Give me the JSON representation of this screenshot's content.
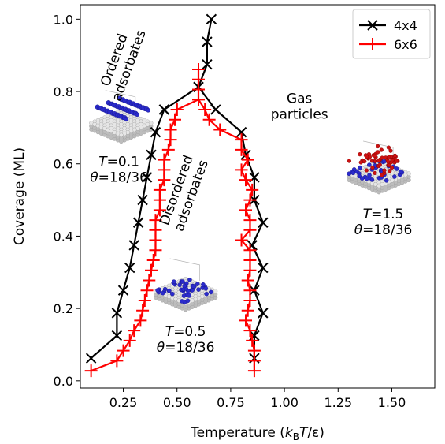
{
  "chart_data": {
    "type": "line",
    "xlabel": "Temperature (k_B T/ε)",
    "ylabel": "Coverage (ML)",
    "xlim": [
      0.05,
      1.7
    ],
    "ylim": [
      -0.02,
      1.04
    ],
    "xticks": [
      0.25,
      0.5,
      0.75,
      1.0,
      1.25,
      1.5
    ],
    "xtick_labels": [
      "0.25",
      "0.50",
      "0.75",
      "1.00",
      "1.25",
      "1.50"
    ],
    "yticks": [
      0.0,
      0.2,
      0.4,
      0.6,
      0.8,
      1.0
    ],
    "ytick_labels": [
      "0.0",
      "0.2",
      "0.4",
      "0.6",
      "0.8",
      "1.0"
    ],
    "grid": false,
    "legend": "top-right",
    "series": [
      {
        "name": "4x4",
        "color": "#000000",
        "marker": "x",
        "low": [
          [
            0.1,
            0.0625
          ],
          [
            0.22,
            0.125
          ],
          [
            0.22,
            0.1875
          ],
          [
            0.25,
            0.25
          ],
          [
            0.28,
            0.3125
          ],
          [
            0.3,
            0.375
          ],
          [
            0.32,
            0.4375
          ],
          [
            0.34,
            0.5
          ],
          [
            0.36,
            0.5625
          ],
          [
            0.38,
            0.625
          ],
          [
            0.4,
            0.6875
          ],
          [
            0.44,
            0.75
          ]
        ],
        "high": [
          [
            0.44,
            0.75
          ],
          [
            0.6,
            0.8125
          ],
          [
            0.64,
            0.875
          ],
          [
            0.64,
            0.9375
          ],
          [
            0.66,
            1.0
          ]
        ],
        "right": [
          [
            0.6,
            0.8125
          ],
          [
            0.68,
            0.75
          ],
          [
            0.8,
            0.6875
          ],
          [
            0.82,
            0.625
          ],
          [
            0.86,
            0.5625
          ],
          [
            0.86,
            0.5
          ],
          [
            0.9,
            0.4375
          ],
          [
            0.85,
            0.375
          ],
          [
            0.9,
            0.3125
          ],
          [
            0.86,
            0.25
          ],
          [
            0.9,
            0.1875
          ],
          [
            0.86,
            0.125
          ],
          [
            0.86,
            0.0625
          ]
        ]
      },
      {
        "name": "6x6",
        "color": "#ff0000",
        "marker": "+",
        "low": [
          [
            0.1,
            0.0278
          ],
          [
            0.22,
            0.0556
          ],
          [
            0.25,
            0.0833
          ],
          [
            0.28,
            0.1111
          ],
          [
            0.3,
            0.1389
          ],
          [
            0.33,
            0.1667
          ],
          [
            0.34,
            0.1944
          ],
          [
            0.35,
            0.2222
          ],
          [
            0.36,
            0.25
          ],
          [
            0.37,
            0.2778
          ],
          [
            0.38,
            0.3056
          ],
          [
            0.39,
            0.3333
          ],
          [
            0.4,
            0.3611
          ],
          [
            0.4,
            0.3889
          ],
          [
            0.4,
            0.4167
          ],
          [
            0.4,
            0.4444
          ],
          [
            0.42,
            0.4722
          ],
          [
            0.42,
            0.5
          ],
          [
            0.42,
            0.5278
          ],
          [
            0.44,
            0.5556
          ],
          [
            0.44,
            0.5833
          ],
          [
            0.44,
            0.6111
          ],
          [
            0.46,
            0.6389
          ],
          [
            0.47,
            0.6667
          ],
          [
            0.47,
            0.6944
          ],
          [
            0.49,
            0.7222
          ],
          [
            0.5,
            0.75
          ]
        ],
        "high": [
          [
            0.5,
            0.75
          ],
          [
            0.6,
            0.7778
          ],
          [
            0.6,
            0.8056
          ],
          [
            0.6,
            0.8333
          ],
          [
            0.6,
            0.8611
          ]
        ],
        "right": [
          [
            0.6,
            0.7778
          ],
          [
            0.63,
            0.75
          ],
          [
            0.65,
            0.7222
          ],
          [
            0.7,
            0.6944
          ],
          [
            0.8,
            0.6667
          ],
          [
            0.8,
            0.6389
          ],
          [
            0.83,
            0.6111
          ],
          [
            0.8,
            0.5833
          ],
          [
            0.82,
            0.5556
          ],
          [
            0.85,
            0.5278
          ],
          [
            0.84,
            0.5
          ],
          [
            0.82,
            0.4722
          ],
          [
            0.84,
            0.4444
          ],
          [
            0.84,
            0.4167
          ],
          [
            0.8,
            0.3889
          ],
          [
            0.84,
            0.3611
          ],
          [
            0.84,
            0.3333
          ],
          [
            0.84,
            0.3056
          ],
          [
            0.83,
            0.2778
          ],
          [
            0.84,
            0.25
          ],
          [
            0.84,
            0.2222
          ],
          [
            0.83,
            0.1944
          ],
          [
            0.82,
            0.1667
          ],
          [
            0.84,
            0.1389
          ],
          [
            0.85,
            0.1111
          ],
          [
            0.86,
            0.0833
          ],
          [
            0.86,
            0.0556
          ],
          [
            0.86,
            0.0278
          ]
        ]
      }
    ],
    "annotations": [
      {
        "id": "ordered",
        "lines": [
          "Ordered",
          "adsorbates"
        ],
        "x": 0.24,
        "y": 0.88,
        "rotate": -70
      },
      {
        "id": "disordered",
        "lines": [
          "Disordered",
          "adsorbates"
        ],
        "x": 0.53,
        "y": 0.52,
        "rotate": -70
      },
      {
        "id": "gas",
        "lines": [
          "Gas",
          "particles"
        ],
        "x": 1.07,
        "y": 0.76,
        "rotate": 0
      },
      {
        "id": "state1",
        "lines": [
          "T=0.1",
          "θ=18/36"
        ],
        "x": 0.23,
        "y": 0.585,
        "rotate": 0
      },
      {
        "id": "state2",
        "lines": [
          "T=0.5",
          "θ=18/36"
        ],
        "x": 0.54,
        "y": 0.115,
        "rotate": 0
      },
      {
        "id": "state3",
        "lines": [
          "T=1.5",
          "θ=18/36"
        ],
        "x": 1.46,
        "y": 0.44,
        "rotate": 0
      }
    ],
    "insets": [
      {
        "id": "inset-ordered",
        "x": 0.24,
        "y": 0.72,
        "type": "ordered"
      },
      {
        "id": "inset-disordered",
        "x": 0.54,
        "y": 0.255,
        "type": "disordered"
      },
      {
        "id": "inset-gas",
        "x": 1.44,
        "y": 0.58,
        "type": "gas"
      }
    ],
    "colors": {
      "adsorbate": "#2b2bcc",
      "gas": "#cc1111",
      "substrate": "#dcdcdc"
    }
  }
}
